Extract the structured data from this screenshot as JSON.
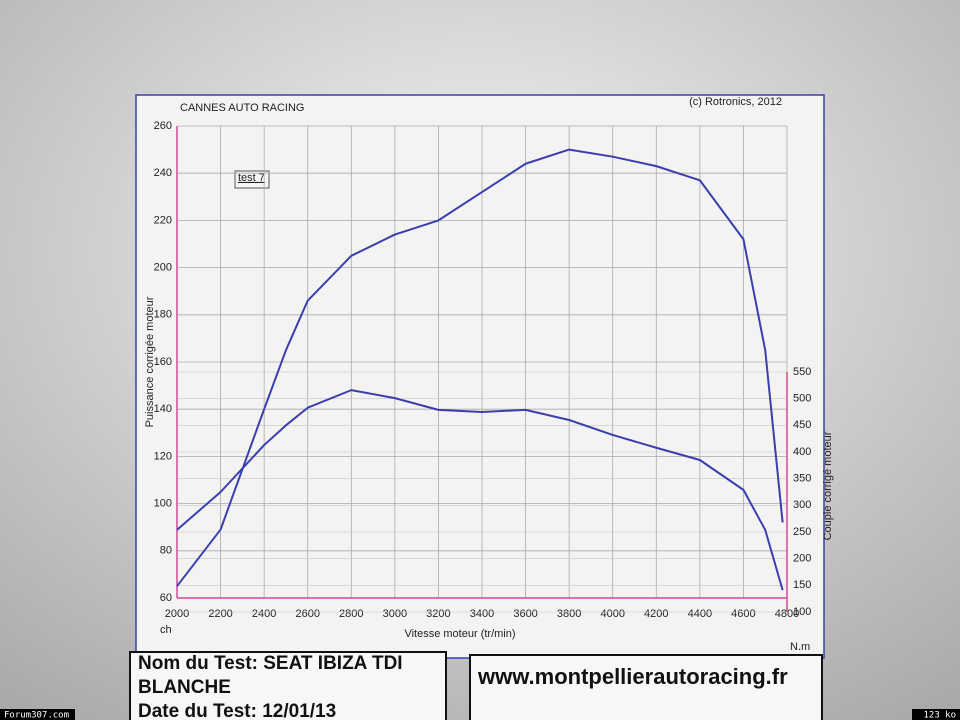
{
  "chart_data": {
    "type": "line",
    "header_left": "CANNES AUTO RACING",
    "header_right": "(c) Rotronics, 2012",
    "legend": "test 7",
    "y_label": "Puissance corrigée moteur",
    "y2_label": "Couple corrigé moteur",
    "x_label": "Vitesse moteur (tr/min)",
    "y_unit": "ch",
    "y2_unit": "N.m",
    "x": [
      2000,
      2200,
      2400,
      2500,
      2600,
      2800,
      3000,
      3200,
      3400,
      3600,
      3800,
      4000,
      4200,
      4400,
      4600,
      4700,
      4780
    ],
    "series": [
      {
        "color": "#3a3fb0",
        "values": [
          65,
          89,
          140,
          165,
          186,
          205,
          214,
          220,
          232,
          244,
          250,
          247,
          243,
          237,
          212,
          165,
          92
        ]
      },
      {
        "color": "#3a3fb0",
        "axis": "y2",
        "values": [
          254,
          325,
          413,
          450,
          483,
          516,
          501,
          479,
          475,
          479,
          460,
          432,
          408,
          385,
          329,
          254,
          141
        ]
      }
    ],
    "xlim": [
      2000,
      4800
    ],
    "xticks": [
      2000,
      2200,
      2400,
      2600,
      2800,
      3000,
      3200,
      3400,
      3600,
      3800,
      4000,
      4200,
      4400,
      4600,
      4800
    ],
    "ylim": [
      60,
      260
    ],
    "yticks": [
      60,
      80,
      100,
      120,
      140,
      160,
      180,
      200,
      220,
      240,
      260
    ],
    "y2lim": [
      100,
      550
    ],
    "y2ticks": [
      100,
      150,
      200,
      250,
      300,
      350,
      400,
      450,
      500,
      550
    ],
    "grid": true
  },
  "test_box": {
    "name_line1": "Nom du Test: SEAT IBIZA TDI",
    "name_line2": "BLANCHE",
    "date": "Date du Test: 12/01/13"
  },
  "website": "www.montpellierautoracing.fr",
  "footer": {
    "left": "Forum307.com",
    "right": "123 ko"
  }
}
